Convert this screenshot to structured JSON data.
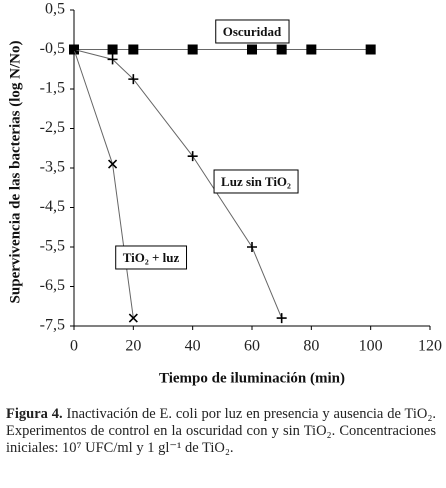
{
  "chart_data": {
    "type": "line",
    "x_label": "Tiempo de iluminación (min)",
    "y_label": "Supervivencia de las bacterias (log N/No)",
    "xlim": [
      0,
      120
    ],
    "ylim": [
      -7.5,
      0.5
    ],
    "xticks": [
      0,
      20,
      40,
      60,
      80,
      100,
      120
    ],
    "yticks": [
      {
        "value": 0.5,
        "label": "0,5"
      },
      {
        "value": -0.5,
        "label": "-0,5"
      },
      {
        "value": -1.5,
        "label": "-1,5"
      },
      {
        "value": -2.5,
        "label": "-2,5"
      },
      {
        "value": -3.5,
        "label": "-3,5"
      },
      {
        "value": -4.5,
        "label": "-4,5"
      },
      {
        "value": -5.5,
        "label": "-5,5"
      },
      {
        "value": -6.5,
        "label": "-6,5"
      },
      {
        "value": -7.5,
        "label": "-7,5"
      }
    ],
    "series": [
      {
        "name": "Oscuridad",
        "marker": "square",
        "color": "#000000",
        "x": [
          0,
          13,
          20,
          40,
          60,
          70,
          80,
          100
        ],
        "values": [
          -0.5,
          -0.5,
          -0.5,
          -0.5,
          -0.5,
          -0.5,
          -0.5,
          -0.5
        ]
      },
      {
        "name": "Luz sin TiO₂",
        "marker": "plus",
        "color": "#000000",
        "x": [
          0,
          13,
          20,
          40,
          60,
          70
        ],
        "values": [
          -0.5,
          -0.75,
          -1.25,
          -3.2,
          -5.5,
          -7.3
        ]
      },
      {
        "name": "TiO₂ + luz",
        "marker": "cross",
        "color": "#000000",
        "x": [
          0,
          13,
          20
        ],
        "values": [
          -0.5,
          -3.4,
          -7.3
        ]
      }
    ]
  },
  "caption": {
    "label": "Figura 4.",
    "text": "Inactivación de E. coli por luz en presencia  y ausencia de TiO₂. Experimentos de control en la oscuridad con y sin TiO₂. Concentraciones iniciales: 10⁷ UFC/ml y 1 gl⁻¹ de TiO₂."
  }
}
